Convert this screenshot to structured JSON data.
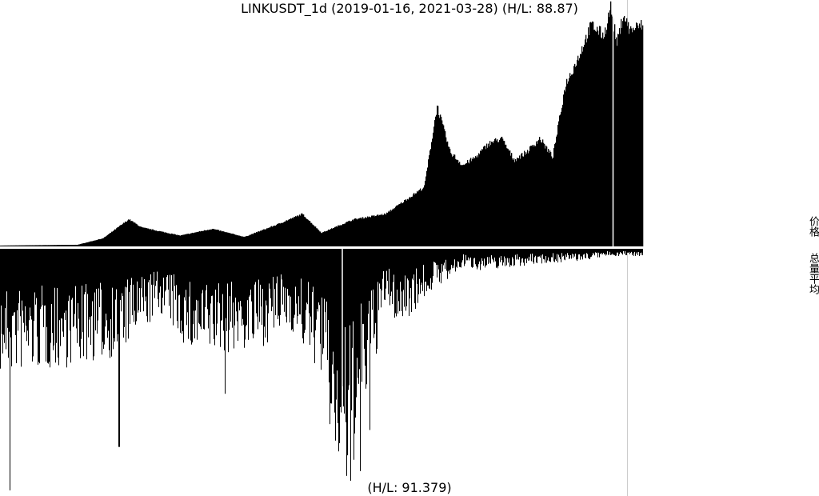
{
  "chart": {
    "title": "LINKUSDT_1d (2019-01-16, 2021-03-28) (H/L: 88.87)",
    "bottom_label": "(H/L: 91.379)",
    "price_axis_label": "价格",
    "volume_axis_label": "总量平均",
    "colors": {
      "bars": "#000000",
      "background": "#ffffff",
      "divider": "#ffffff",
      "marker": "#cccccc"
    }
  },
  "chart_data": [
    {
      "type": "area",
      "panel": "price",
      "x_range": [
        "2019-01-16",
        "2021-03-28"
      ],
      "hl_ratio": 88.87,
      "x_fraction_knots": [
        0,
        0.06,
        0.12,
        0.16,
        0.2,
        0.22,
        0.24,
        0.28,
        0.33,
        0.38,
        0.43,
        0.47,
        0.5,
        0.53,
        0.55,
        0.6,
        0.66,
        0.68,
        0.7,
        0.72,
        0.74,
        0.76,
        0.78,
        0.8,
        0.82,
        0.84,
        0.86,
        0.88,
        0.9,
        0.92,
        0.94,
        0.95,
        0.96,
        0.97,
        0.98,
        1.0
      ],
      "y_knots": [
        0.3,
        0.45,
        0.6,
        3,
        10,
        7,
        6,
        4,
        6.5,
        3.5,
        8,
        12,
        5,
        8,
        10,
        12,
        22,
        52,
        35,
        30,
        33,
        38,
        40,
        32,
        35,
        40,
        33,
        60,
        70,
        82,
        78,
        88.87,
        75,
        86,
        80,
        82
      ]
    },
    {
      "type": "bar",
      "panel": "volume",
      "hl_ratio": 91.379,
      "x_fraction_knots": [
        0,
        0.1,
        0.18,
        0.25,
        0.3,
        0.4,
        0.45,
        0.5,
        0.52,
        0.54,
        0.56,
        0.58,
        0.6,
        0.62,
        0.64,
        0.68,
        0.7,
        0.72,
        0.75,
        0.8,
        0.85,
        0.9,
        0.95,
        1.0
      ],
      "level_knots": [
        0.35,
        0.33,
        0.3,
        0.18,
        0.3,
        0.28,
        0.22,
        0.35,
        0.6,
        0.7,
        0.5,
        0.35,
        0.15,
        0.22,
        0.18,
        0.1,
        0.09,
        0.05,
        0.06,
        0.05,
        0.04,
        0.035,
        0.02,
        0.02
      ],
      "spikes": [
        {
          "x_fraction": 0.015,
          "level": 1.0
        },
        {
          "x_fraction": 0.185,
          "level": 0.82
        },
        {
          "x_fraction": 0.35,
          "level": 0.6
        },
        {
          "x_fraction": 0.545,
          "level": 0.96
        },
        {
          "x_fraction": 0.56,
          "level": 0.92
        },
        {
          "x_fraction": 0.575,
          "level": 0.75
        }
      ]
    }
  ]
}
